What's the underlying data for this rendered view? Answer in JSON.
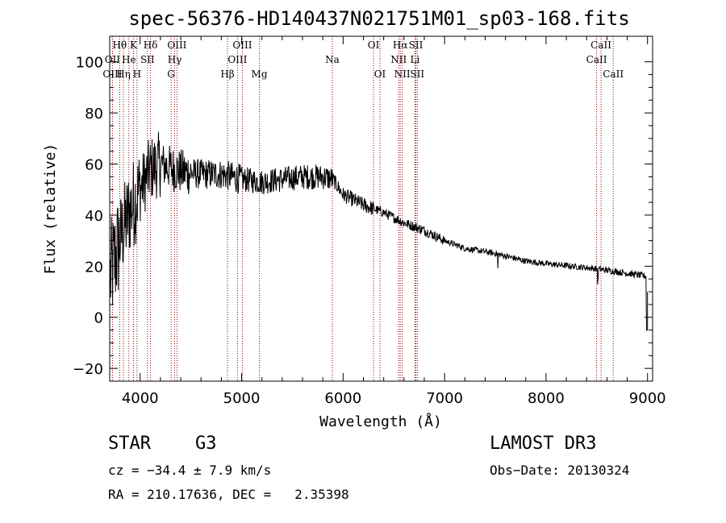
{
  "chart_data": {
    "type": "line",
    "title": "spec-56376-HD140437N021751M01_sp03-168.fits",
    "xlabel": "Wavelength (Å)",
    "ylabel": "Flux (relative)",
    "xlim": [
      3700,
      9050
    ],
    "ylim": [
      -25,
      110
    ],
    "xticks": [
      4000,
      5000,
      6000,
      7000,
      8000,
      9000
    ],
    "yticks": [
      -20,
      0,
      20,
      40,
      60,
      80,
      100
    ],
    "ytick_labels": [
      "−20",
      "0",
      "20",
      "40",
      "60",
      "80",
      "100"
    ],
    "line_color": "#000000",
    "marker_color": "#8b0000",
    "continuum": {
      "x": [
        3700,
        3800,
        3900,
        4000,
        4100,
        4200,
        4400,
        4600,
        4800,
        5000,
        5200,
        5400,
        5600,
        5800,
        5900,
        6000,
        6200,
        6400,
        6600,
        6800,
        7000,
        7200,
        7500,
        7800,
        8000,
        8500,
        9000
      ],
      "y": [
        15,
        30,
        42,
        50,
        58,
        60,
        57,
        56,
        56,
        54,
        53,
        54,
        55,
        55,
        54,
        48,
        44,
        41,
        37,
        34,
        30,
        27,
        25,
        22,
        21,
        19,
        16
      ]
    },
    "spectral_lines": [
      {
        "label": "Hθ",
        "x": 3798,
        "row": 0
      },
      {
        "label": "OII",
        "x": 3727,
        "row": 1
      },
      {
        "label": "OIII",
        "x": 3727,
        "row": 2
      },
      {
        "label": "He",
        "x": 3889,
        "row": 1
      },
      {
        "label": "Hη",
        "x": 3835,
        "row": 2
      },
      {
        "label": "K",
        "x": 3934,
        "row": 0
      },
      {
        "label": "H",
        "x": 3969,
        "row": 2
      },
      {
        "label": "Hδ",
        "x": 4102,
        "row": 0
      },
      {
        "label": "SII",
        "x": 4072,
        "row": 1
      },
      {
        "label": "OIII",
        "x": 4363,
        "row": 0
      },
      {
        "label": "Hγ",
        "x": 4340,
        "row": 1
      },
      {
        "label": "G",
        "x": 4305,
        "row": 2
      },
      {
        "label": "Hβ",
        "x": 4861,
        "row": 2
      },
      {
        "label": "OIII",
        "x": 5007,
        "row": 0
      },
      {
        "label": "OIII",
        "x": 4959,
        "row": 1
      },
      {
        "label": "Mg",
        "x": 5175,
        "row": 2
      },
      {
        "label": "Na",
        "x": 5894,
        "row": 1
      },
      {
        "label": "OI",
        "x": 6300,
        "row": 0
      },
      {
        "label": "OI",
        "x": 6363,
        "row": 2
      },
      {
        "label": "Hα",
        "x": 6563,
        "row": 0
      },
      {
        "label": "NII",
        "x": 6548,
        "row": 1
      },
      {
        "label": "NII",
        "x": 6583,
        "row": 2
      },
      {
        "label": "SII",
        "x": 6717,
        "row": 0
      },
      {
        "label": "Li",
        "x": 6708,
        "row": 1
      },
      {
        "label": "SII",
        "x": 6731,
        "row": 2
      },
      {
        "label": "CaII",
        "x": 8542,
        "row": 0
      },
      {
        "label": "CaII",
        "x": 8498,
        "row": 1
      },
      {
        "label": "CaII",
        "x": 8662,
        "row": 2
      }
    ]
  },
  "info": {
    "object_type": "STAR",
    "subclass": "G3",
    "survey": "LAMOST DR3",
    "cz": "cz = −34.4 ± 7.9 km/s",
    "obs_date": "Obs−Date: 20130324",
    "radec": "RA = 210.17636, DEC =   2.35398"
  }
}
